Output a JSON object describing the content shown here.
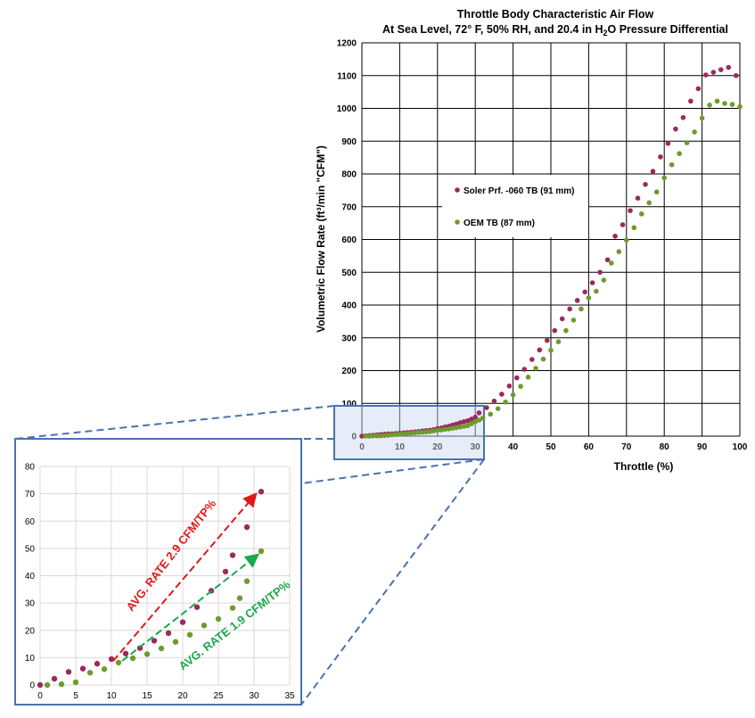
{
  "chart_data": [
    {
      "type": "scatter",
      "title": "Throttle Body Characteristic Air Flow",
      "subtitle_parts": [
        "At Sea Level, 72° F, 50% RH, and 20.4 in H",
        "2",
        "O Pressure Differential"
      ],
      "xlabel": "Throttle (%)",
      "ylabel": "Volumetric Flow Rate (ft³/min \"CFM\")",
      "xlim": [
        0,
        100
      ],
      "ylim": [
        0,
        1200
      ],
      "xticks": [
        0,
        10,
        20,
        30,
        40,
        50,
        60,
        70,
        80,
        90,
        100
      ],
      "yticks": [
        0,
        100,
        200,
        300,
        400,
        500,
        600,
        700,
        800,
        900,
        1000,
        1100,
        1200
      ],
      "grid": true,
      "legend_placement": "center",
      "series": [
        {
          "name": "Soler Prf. -060 TB (91 mm)",
          "color": "#9b2a5a",
          "x": [
            0,
            1,
            2,
            3,
            4,
            5,
            6,
            7,
            8,
            9,
            10,
            11,
            12,
            13,
            14,
            15,
            16,
            17,
            18,
            19,
            20,
            21,
            22,
            23,
            24,
            25,
            26,
            27,
            28,
            29,
            30,
            31,
            33,
            35,
            37,
            39,
            41,
            43,
            45,
            47,
            49,
            51,
            53,
            55,
            57,
            59,
            61,
            63,
            65,
            67,
            69,
            71,
            73,
            75,
            77,
            79,
            81,
            83,
            85,
            87,
            89,
            91,
            93,
            95,
            97,
            99
          ],
          "y": [
            0,
            1,
            2,
            3,
            4,
            5,
            6,
            7,
            7,
            8,
            9,
            10,
            11,
            12,
            13,
            14,
            16,
            17,
            18,
            20,
            23,
            25,
            28,
            30,
            34,
            37,
            41,
            44,
            47,
            52,
            58,
            71,
            87,
            107,
            128,
            153,
            178,
            204,
            234,
            263,
            292,
            322,
            358,
            388,
            414,
            440,
            468,
            500,
            538,
            610,
            645,
            688,
            726,
            768,
            808,
            852,
            893,
            937,
            972,
            1022,
            1060,
            1102,
            1110,
            1118,
            1125,
            1100
          ]
        },
        {
          "name": "OEM TB (87 mm)",
          "color": "#6f9a2e",
          "x": [
            1,
            2,
            3,
            4,
            5,
            6,
            7,
            8,
            9,
            10,
            11,
            12,
            13,
            14,
            15,
            16,
            17,
            18,
            19,
            20,
            21,
            22,
            23,
            24,
            25,
            26,
            27,
            28,
            29,
            30,
            31,
            32,
            34,
            36,
            38,
            40,
            42,
            44,
            46,
            48,
            50,
            52,
            54,
            56,
            58,
            60,
            62,
            64,
            66,
            68,
            70,
            72,
            74,
            76,
            78,
            80,
            82,
            84,
            86,
            88,
            90,
            92,
            94,
            96,
            98,
            100
          ],
          "y": [
            0,
            0,
            1,
            1,
            1,
            2,
            3,
            4,
            5,
            6,
            7,
            8,
            9,
            10,
            11,
            12,
            13,
            14,
            16,
            18,
            19,
            21,
            22,
            24,
            26,
            28,
            30,
            32,
            38,
            44,
            49,
            55,
            67,
            84,
            104,
            126,
            152,
            180,
            207,
            235,
            262,
            288,
            322,
            354,
            388,
            422,
            442,
            476,
            528,
            563,
            598,
            636,
            678,
            712,
            745,
            788,
            828,
            862,
            895,
            928,
            970,
            1010,
            1022,
            1015,
            1012,
            1005
          ]
        }
      ]
    },
    {
      "type": "scatter",
      "title": "",
      "xlim": [
        0,
        35
      ],
      "ylim": [
        0,
        80
      ],
      "xticks": [
        0,
        5,
        10,
        15,
        20,
        25,
        30,
        35
      ],
      "yticks": [
        0,
        10,
        20,
        30,
        40,
        50,
        60,
        70,
        80
      ],
      "grid": true,
      "series": [
        {
          "color": "#9b2a5a",
          "x": [
            0,
            2,
            4,
            6,
            8,
            10,
            12,
            14,
            16,
            18,
            20,
            22,
            24,
            26,
            27,
            29,
            31
          ],
          "y": [
            0,
            2.3,
            4.8,
            6,
            7.8,
            9.5,
            11.5,
            13.5,
            16.2,
            19,
            23,
            28.5,
            34.5,
            41.5,
            47.5,
            57.8,
            70.8
          ]
        },
        {
          "color": "#6f9a2e",
          "x": [
            1,
            3,
            5,
            7,
            9,
            11,
            13,
            15,
            17,
            19,
            21,
            23,
            25,
            27,
            28,
            29,
            31
          ],
          "y": [
            0,
            0.3,
            1,
            4.5,
            5.8,
            8.2,
            9.8,
            11.3,
            13.4,
            15.8,
            18.4,
            21.8,
            24.2,
            28.2,
            31.8,
            38,
            49
          ]
        }
      ],
      "annotations": [
        {
          "text": "AVG. RATE 2.9 CFM/TP%",
          "color": "#e01818"
        },
        {
          "text": "AVG. RATE 1.9 CFM/TP%",
          "color": "#1aa84a"
        }
      ]
    }
  ]
}
